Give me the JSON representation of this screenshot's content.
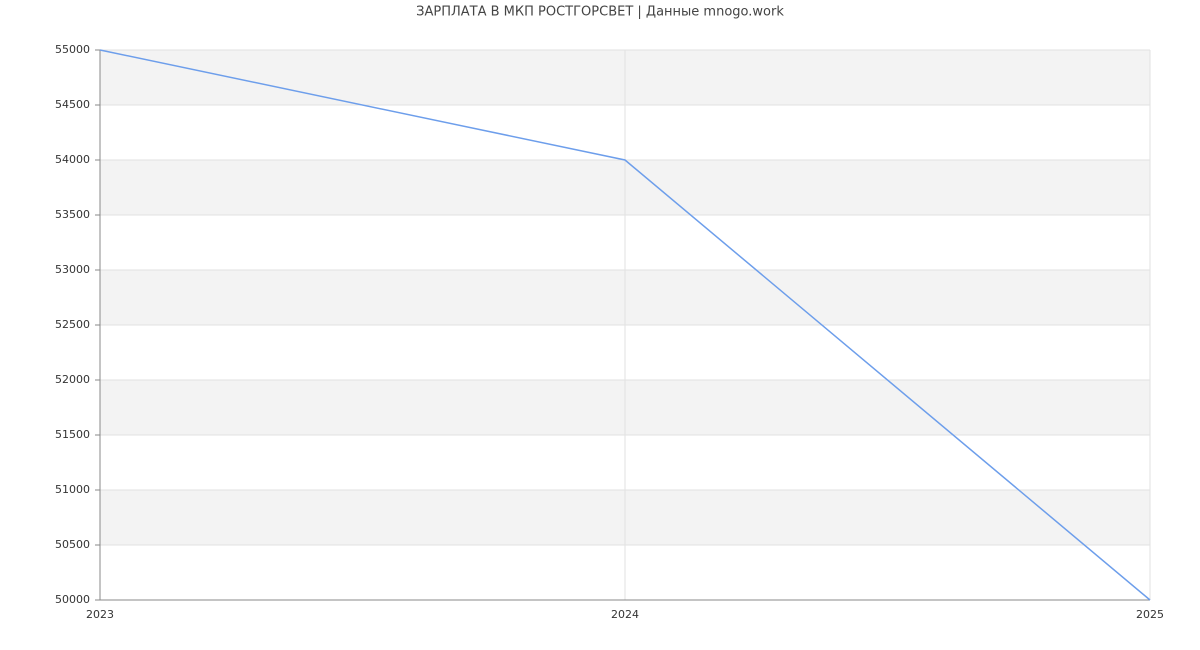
{
  "chart_data": {
    "type": "line",
    "title": "ЗАРПЛАТА В МКП РОСТГОРСВЕТ | Данные mnogo.work",
    "categories": [
      "2023",
      "2024",
      "2025"
    ],
    "values": [
      55000,
      54000,
      50000
    ],
    "color": "#6d9eeb",
    "ylim": [
      50000,
      55000
    ],
    "yticks": [
      50000,
      50500,
      51000,
      51500,
      52000,
      52500,
      53000,
      53500,
      54000,
      54500,
      55000
    ],
    "grid": true
  }
}
